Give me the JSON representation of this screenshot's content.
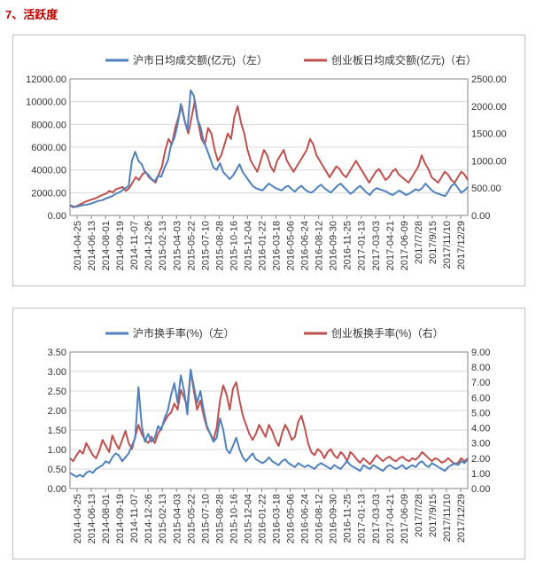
{
  "section_title": "7、活跃度",
  "colors": {
    "blue": "#4f81bd",
    "red": "#c0504d",
    "grid": "#d9d9d9",
    "axis": "#868686"
  },
  "chart_data": [
    {
      "type": "line",
      "title": "",
      "legend_position": "top",
      "series": [
        {
          "name": "沪市日均成交额(亿元)（左）",
          "axis": "left",
          "color": "#4f81bd",
          "values": [
            900,
            800,
            750,
            850,
            900,
            950,
            1000,
            1100,
            1200,
            1300,
            1350,
            1500,
            1600,
            1700,
            1900,
            2000,
            2200,
            2400,
            2600,
            4800,
            5600,
            4800,
            4500,
            3800,
            3600,
            3200,
            3000,
            3500,
            3400,
            4200,
            4800,
            6200,
            6800,
            8000,
            9800,
            8500,
            7500,
            11000,
            10500,
            8500,
            7800,
            6500,
            5800,
            5000,
            4200,
            4000,
            4600,
            3800,
            3500,
            3200,
            3500,
            4000,
            4500,
            3800,
            3400,
            3000,
            2600,
            2400,
            2300,
            2200,
            2500,
            2800,
            2600,
            2400,
            2300,
            2200,
            2500,
            2600,
            2300,
            2100,
            2400,
            2600,
            2300,
            2100,
            2000,
            2200,
            2500,
            2700,
            2400,
            2200,
            2000,
            2300,
            2600,
            2800,
            2500,
            2200,
            1900,
            2100,
            2400,
            2600,
            2300,
            2000,
            1800,
            2200,
            2400,
            2300,
            2200,
            2100,
            1900,
            1800,
            2000,
            2200,
            2000,
            1800,
            1900,
            2100,
            2300,
            2200,
            2400,
            2800,
            2500,
            2200,
            2000,
            1900,
            1800,
            1700,
            2100,
            2600,
            2800,
            2400,
            2000,
            2200,
            2500
          ]
        },
        {
          "name": "创业板日均成交额(亿元)（右）",
          "axis": "right",
          "color": "#c0504d",
          "values": [
            180,
            150,
            170,
            200,
            230,
            260,
            280,
            300,
            320,
            350,
            380,
            400,
            450,
            420,
            480,
            500,
            520,
            450,
            500,
            600,
            700,
            650,
            750,
            800,
            700,
            650,
            600,
            750,
            900,
            1200,
            1400,
            1300,
            1600,
            1800,
            2000,
            1700,
            1500,
            1800,
            2100,
            1700,
            1400,
            1300,
            1600,
            1500,
            1200,
            1000,
            1100,
            1300,
            1500,
            1400,
            1800,
            2000,
            1700,
            1500,
            1200,
            1000,
            900,
            800,
            1000,
            1200,
            1100,
            900,
            800,
            1000,
            1100,
            1200,
            1000,
            900,
            800,
            900,
            1000,
            1100,
            1200,
            1400,
            1300,
            1100,
            1000,
            900,
            800,
            700,
            800,
            900,
            850,
            750,
            700,
            800,
            900,
            1000,
            900,
            800,
            700,
            600,
            700,
            800,
            850,
            750,
            650,
            700,
            800,
            850,
            750,
            700,
            650,
            600,
            700,
            800,
            900,
            1100,
            950,
            850,
            700,
            650,
            600,
            700,
            800,
            750,
            650,
            600,
            700,
            800,
            750,
            650
          ]
        }
      ],
      "x_tick_labels": [
        "2014-04-25",
        "2014-06-13",
        "2014-08-01",
        "2014-09-19",
        "2014-11-07",
        "2014-12-26",
        "2015-02-13",
        "2015-04-03",
        "2015-05-22",
        "2015-07-10",
        "2015-08-28",
        "2015-10-16",
        "2015-12-04",
        "2016-01-22",
        "2016-03-18",
        "2016-05-06",
        "2016-06-24",
        "2016-08-12",
        "2016-09-30",
        "2016-11-25",
        "2017-01-13",
        "2017-03-03",
        "2017-04-21",
        "2017-06-09",
        "2017/7/28",
        "2017/9/15",
        "2017/11/10",
        "2017/12/29"
      ],
      "y_left": {
        "min": 0,
        "max": 12000,
        "step": 2000,
        "tick_labels": [
          "0.00",
          "2000.00",
          "4000.00",
          "6000.00",
          "8000.00",
          "10000.00",
          "12000.00"
        ]
      },
      "y_right": {
        "min": 0,
        "max": 2500,
        "step": 500,
        "tick_labels": [
          "0.00",
          "500.00",
          "1000.00",
          "1500.00",
          "2000.00",
          "2500.00"
        ]
      },
      "grid": true
    },
    {
      "type": "line",
      "title": "",
      "legend_position": "top",
      "series": [
        {
          "name": "沪市换手率(%)（左）",
          "axis": "left",
          "color": "#4f81bd",
          "values": [
            0.4,
            0.35,
            0.3,
            0.35,
            0.3,
            0.4,
            0.45,
            0.4,
            0.5,
            0.55,
            0.6,
            0.7,
            0.65,
            0.8,
            0.9,
            0.85,
            0.7,
            0.8,
            0.9,
            1.1,
            1.3,
            2.6,
            1.6,
            1.2,
            1.4,
            1.2,
            1.3,
            1.6,
            1.5,
            1.8,
            2.0,
            2.4,
            2.7,
            2.2,
            2.9,
            2.5,
            1.9,
            3.05,
            2.6,
            2.2,
            2.5,
            2.0,
            1.6,
            1.4,
            1.2,
            1.3,
            1.8,
            1.5,
            1.0,
            0.9,
            1.1,
            1.3,
            1.0,
            0.8,
            0.7,
            0.8,
            0.9,
            0.75,
            0.7,
            0.65,
            0.7,
            0.8,
            0.7,
            0.65,
            0.6,
            0.7,
            0.75,
            0.65,
            0.6,
            0.55,
            0.65,
            0.6,
            0.55,
            0.6,
            0.55,
            0.5,
            0.6,
            0.65,
            0.6,
            0.55,
            0.5,
            0.6,
            0.55,
            0.5,
            0.6,
            0.7,
            0.6,
            0.55,
            0.5,
            0.45,
            0.6,
            0.55,
            0.5,
            0.6,
            0.55,
            0.5,
            0.45,
            0.55,
            0.6,
            0.55,
            0.5,
            0.55,
            0.6,
            0.5,
            0.55,
            0.6,
            0.55,
            0.65,
            0.7,
            0.6,
            0.55,
            0.65,
            0.6,
            0.55,
            0.5,
            0.45,
            0.55,
            0.6,
            0.65,
            0.6,
            0.7,
            0.65,
            0.75
          ]
        },
        {
          "name": "创业板换手率(%)（右）",
          "axis": "right",
          "color": "#c0504d",
          "values": [
            2.0,
            1.8,
            2.2,
            2.5,
            2.3,
            3.0,
            2.6,
            2.2,
            2.0,
            2.5,
            3.2,
            2.8,
            2.4,
            3.5,
            3.0,
            2.6,
            3.2,
            3.8,
            3.0,
            2.6,
            3.4,
            4.2,
            3.6,
            3.2,
            3.0,
            3.4,
            3.0,
            3.6,
            4.0,
            4.4,
            4.8,
            5.0,
            5.6,
            5.2,
            6.5,
            6.0,
            5.4,
            7.8,
            6.4,
            5.2,
            5.8,
            4.8,
            4.0,
            3.6,
            3.2,
            4.0,
            5.8,
            6.8,
            6.2,
            5.2,
            6.6,
            7.0,
            5.8,
            4.8,
            4.2,
            3.6,
            3.2,
            3.6,
            4.2,
            3.8,
            3.4,
            4.2,
            3.8,
            3.2,
            2.8,
            3.6,
            4.2,
            3.8,
            3.2,
            3.4,
            4.4,
            4.8,
            4.0,
            3.0,
            2.4,
            2.2,
            2.6,
            2.4,
            2.0,
            2.4,
            2.6,
            2.2,
            2.0,
            2.4,
            2.2,
            1.8,
            2.4,
            2.2,
            1.9,
            1.7,
            2.0,
            1.8,
            1.6,
            1.9,
            2.2,
            2.0,
            1.8,
            2.0,
            2.1,
            1.9,
            1.8,
            2.0,
            2.1,
            1.9,
            1.8,
            2.0,
            1.9,
            2.1,
            2.4,
            2.2,
            2.0,
            1.8,
            2.0,
            1.9,
            1.7,
            1.8,
            2.0,
            1.8,
            1.6,
            1.7,
            2.0,
            1.8,
            2.0
          ]
        }
      ],
      "x_tick_labels": [
        "2014-04-25",
        "2014-06-13",
        "2014-08-01",
        "2014-09-19",
        "2014-11-07",
        "2014-12-26",
        "2015-02-13",
        "2015-04-03",
        "2015-05-22",
        "2015-07-10",
        "2015-08-28",
        "2015-10-16",
        "2015-12-04",
        "2016-01-22",
        "2016-03-18",
        "2016-05-06",
        "2016-06-24",
        "2016-08-12",
        "2016-09-30",
        "2016-11-25",
        "2017-01-13",
        "2017-03-03",
        "2017-04-21",
        "2017-06-09",
        "2017/7/28",
        "2017/9/15",
        "2017/11/10",
        "2017/12/29"
      ],
      "y_left": {
        "min": 0,
        "max": 3.5,
        "step": 0.5,
        "tick_labels": [
          "0.00",
          "0.50",
          "1.00",
          "1.50",
          "2.00",
          "2.50",
          "3.00",
          "3.50"
        ]
      },
      "y_right": {
        "min": 0,
        "max": 9,
        "step": 1,
        "tick_labels": [
          "0.00",
          "1.00",
          "2.00",
          "3.00",
          "4.00",
          "5.00",
          "6.00",
          "7.00",
          "8.00",
          "9.00"
        ]
      },
      "grid": true
    }
  ]
}
